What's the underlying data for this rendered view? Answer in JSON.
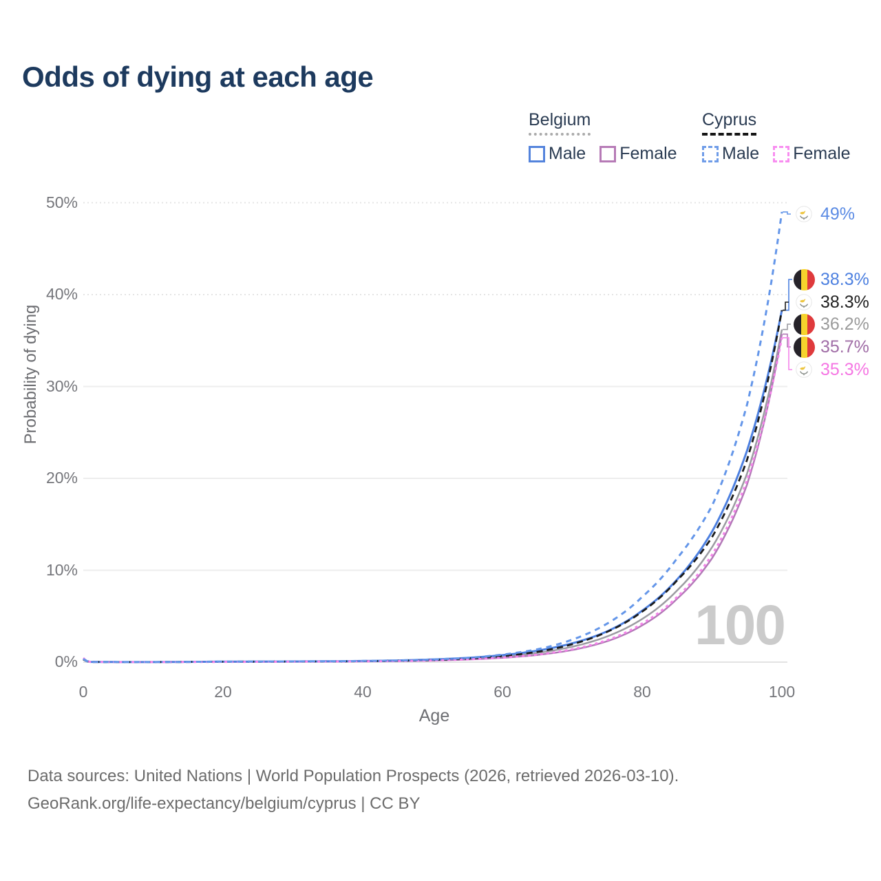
{
  "title": "Odds of dying at each age",
  "legend": {
    "groups": [
      {
        "name": "Belgium",
        "line_style": "solid",
        "underline_color": "#ababab",
        "items": [
          {
            "label": "Male",
            "color": "#5383dc"
          },
          {
            "label": "Female",
            "color": "#b67ab6"
          }
        ]
      },
      {
        "name": "Cyprus",
        "line_style": "dashed",
        "underline_color": "#161616",
        "items": [
          {
            "label": "Male",
            "color": "#6f9ce8"
          },
          {
            "label": "Female",
            "color": "#f88df0"
          }
        ]
      }
    ]
  },
  "axes": {
    "x_label": "Age",
    "y_label": "Probability of dying",
    "x_ticks": [
      "0",
      "20",
      "40",
      "60",
      "80",
      "100"
    ],
    "y_ticks": [
      "0%",
      "10%",
      "20%",
      "30%",
      "40%",
      "50%"
    ]
  },
  "watermark_age": "100",
  "footer": {
    "line1": "Data sources: United Nations | World Population Prospects (2026, retrieved 2026-03-10).",
    "line2": "GeoRank.org/life-expectancy/belgium/cyprus | CC BY"
  },
  "chart_data": {
    "type": "line",
    "title": "Odds of dying at each age",
    "xlabel": "Age",
    "ylabel": "Probability of dying",
    "x_range": [
      0,
      100
    ],
    "y_range_pct": [
      0,
      50
    ],
    "grid": "horizontal",
    "legend_position": "top-right",
    "anchor_ages": [
      0,
      1,
      5,
      10,
      15,
      20,
      25,
      30,
      35,
      40,
      45,
      50,
      55,
      60,
      65,
      70,
      75,
      80,
      85,
      90,
      95,
      100
    ],
    "series": [
      {
        "id": "belgium_male",
        "country": "Belgium",
        "sex": "Male",
        "color": "#4d80e0",
        "dash": "",
        "width": 3,
        "end_value_pct": 38.3,
        "values_pct": [
          0.4,
          0.03,
          0.01,
          0.01,
          0.03,
          0.055,
          0.065,
          0.075,
          0.09,
          0.12,
          0.18,
          0.29,
          0.46,
          0.76,
          1.25,
          2.05,
          3.35,
          5.6,
          9.0,
          14.2,
          23.0,
          38.3
        ]
      },
      {
        "id": "belgium_female",
        "country": "Belgium",
        "sex": "Female",
        "color": "#b279b7",
        "dash": "",
        "width": 2.5,
        "end_value_pct": 35.7,
        "values_pct": [
          0.32,
          0.025,
          0.008,
          0.008,
          0.018,
          0.028,
          0.035,
          0.045,
          0.058,
          0.08,
          0.115,
          0.175,
          0.285,
          0.47,
          0.78,
          1.32,
          2.28,
          4.0,
          6.9,
          11.3,
          19.3,
          35.7
        ]
      },
      {
        "id": "belgium_total",
        "country": "Belgium",
        "sex": "Total",
        "color": "#9b9ba1",
        "dash": "",
        "width": 2.5,
        "end_value_pct": 36.2,
        "values_pct": [
          0.35,
          0.028,
          0.009,
          0.009,
          0.025,
          0.042,
          0.05,
          0.06,
          0.075,
          0.1,
          0.145,
          0.225,
          0.37,
          0.61,
          1.0,
          1.68,
          2.8,
          4.7,
          7.8,
          12.5,
          20.5,
          36.2
        ]
      },
      {
        "id": "cyprus_male",
        "country": "Cyprus",
        "sex": "Male",
        "color": "#6496e9",
        "dash": "8 7",
        "width": 3,
        "end_value_pct": 49.0,
        "values_pct": [
          0.35,
          0.028,
          0.01,
          0.01,
          0.03,
          0.055,
          0.068,
          0.08,
          0.095,
          0.125,
          0.18,
          0.28,
          0.47,
          0.82,
          1.4,
          2.45,
          4.2,
          7.1,
          11.3,
          17.0,
          28.0,
          49.0
        ]
      },
      {
        "id": "cyprus_female",
        "country": "Cyprus",
        "sex": "Female",
        "color": "#f584ea",
        "dash": "4 5",
        "width": 3,
        "end_value_pct": 35.3,
        "values_pct": [
          0.45,
          0.03,
          0.008,
          0.008,
          0.018,
          0.028,
          0.036,
          0.046,
          0.06,
          0.082,
          0.115,
          0.18,
          0.295,
          0.49,
          0.82,
          1.4,
          2.4,
          4.2,
          7.1,
          11.7,
          19.8,
          35.3
        ]
      },
      {
        "id": "cyprus_total",
        "country": "Cyprus",
        "sex": "Total",
        "color": "#1b1b1b",
        "dash": "9 6",
        "width": 2.8,
        "end_value_pct": 38.3,
        "values_pct": [
          0.3,
          0.025,
          0.009,
          0.009,
          0.025,
          0.045,
          0.055,
          0.065,
          0.08,
          0.105,
          0.15,
          0.235,
          0.39,
          0.66,
          1.12,
          1.95,
          3.3,
          5.5,
          8.9,
          13.6,
          22.0,
          38.3
        ]
      }
    ],
    "end_labels": [
      {
        "series": "cyprus_male",
        "flag": "cyprus",
        "text": "49%",
        "color": "#5b8be4"
      },
      {
        "series": "belgium_male",
        "flag": "belgium",
        "text": "38.3%",
        "color": "#4d80e0"
      },
      {
        "series": "cyprus_total",
        "flag": "cyprus",
        "text": "38.3%",
        "color": "#222222"
      },
      {
        "series": "belgium_total",
        "flag": "belgium",
        "text": "36.2%",
        "color": "#9b9b9b"
      },
      {
        "series": "belgium_female",
        "flag": "belgium",
        "text": "35.7%",
        "color": "#a06da6"
      },
      {
        "series": "cyprus_female",
        "flag": "cyprus",
        "text": "35.3%",
        "color": "#f576e3"
      }
    ]
  }
}
